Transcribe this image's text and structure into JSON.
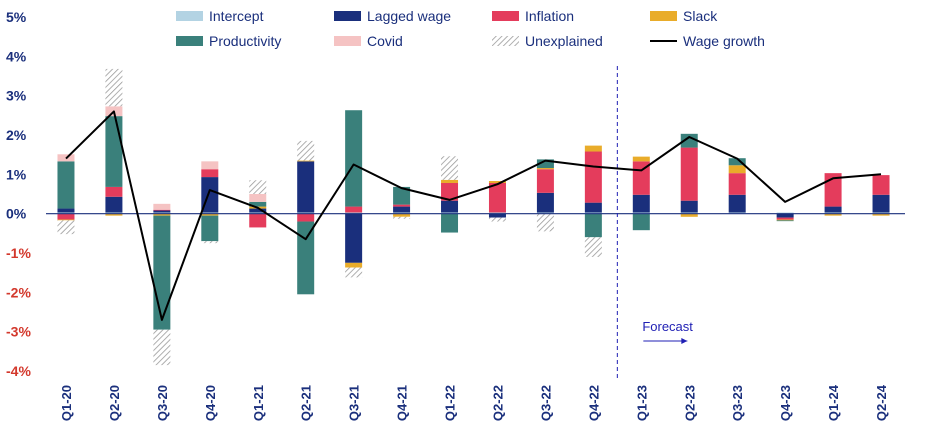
{
  "chart_data": {
    "type": "bar",
    "title": "",
    "xlabel": "",
    "ylabel": "",
    "ylim": [
      -4,
      5
    ],
    "yticks": [
      "5%",
      "4%",
      "3%",
      "2%",
      "1%",
      "0%",
      "-1%",
      "-2%",
      "-3%",
      "-4%"
    ],
    "ytick_values": [
      5,
      4,
      3,
      2,
      1,
      0,
      -1,
      -2,
      -3,
      -4
    ],
    "categories": [
      "Q1-20",
      "Q2-20",
      "Q3-20",
      "Q4-20",
      "Q1-21",
      "Q2-21",
      "Q3-21",
      "Q4-21",
      "Q1-22",
      "Q2-22",
      "Q3-22",
      "Q4-22",
      "Q1-23",
      "Q2-23",
      "Q3-23",
      "Q4-23",
      "Q1-24",
      "Q2-24"
    ],
    "legend_position": "top",
    "colors": {
      "Intercept": "#b3d3e3",
      "Lagged wage": "#1a2f7c",
      "Inflation": "#e43c5c",
      "Slack": "#e9ac2a",
      "Productivity": "#3a807b",
      "Covid": "#f5c3c3",
      "Unexplained": "#a8a8a8",
      "Wage growth": "#000000",
      "negative_tick": "#d3382c",
      "positive_tick": "#1a2f7c",
      "forecast": "#1f1fb4"
    },
    "series": [
      {
        "name": "Intercept",
        "values": [
          0.03,
          0.03,
          0.03,
          0.03,
          0.03,
          0.03,
          0.03,
          0.03,
          0.03,
          0.03,
          0.03,
          0.03,
          0.03,
          0.03,
          0.03,
          0.03,
          0.03,
          0.03
        ]
      },
      {
        "name": "Lagged wage",
        "values": [
          0.1,
          0.4,
          0.05,
          0.9,
          0.1,
          1.3,
          -1.25,
          0.15,
          0.3,
          -0.1,
          0.5,
          0.25,
          0.45,
          0.3,
          0.45,
          -0.1,
          0.15,
          0.45
        ]
      },
      {
        "name": "Inflation",
        "values": [
          -0.15,
          0.25,
          0.02,
          0.2,
          -0.35,
          -0.2,
          0.15,
          0.05,
          0.45,
          0.75,
          0.6,
          1.3,
          0.85,
          1.35,
          0.55,
          -0.05,
          0.85,
          0.5
        ]
      },
      {
        "name": "Slack",
        "values": [
          -0.02,
          -0.05,
          -0.05,
          -0.05,
          0.05,
          0.02,
          -0.12,
          -0.08,
          0.08,
          0.05,
          0.03,
          0.15,
          0.12,
          -0.08,
          0.2,
          -0.02,
          -0.05,
          -0.05
        ]
      },
      {
        "name": "Productivity",
        "values": [
          1.2,
          1.8,
          -2.9,
          -0.65,
          0.12,
          -1.85,
          2.45,
          0.45,
          -0.48,
          0.0,
          0.22,
          -0.6,
          -0.42,
          0.35,
          0.18,
          -0.02,
          0.0,
          0.0
        ]
      },
      {
        "name": "Covid",
        "values": [
          0.18,
          0.25,
          0.15,
          0.2,
          0.2,
          0.0,
          0.0,
          0.0,
          0.0,
          0.0,
          0.0,
          0.0,
          0.0,
          0.0,
          0.0,
          0.0,
          0.0,
          0.0
        ]
      },
      {
        "name": "Unexplained",
        "values": [
          -0.35,
          0.95,
          -0.9,
          -0.05,
          0.35,
          0.5,
          -0.25,
          -0.05,
          0.6,
          -0.1,
          -0.45,
          -0.5,
          0.0,
          0.0,
          0.0,
          0.0,
          0.0,
          0.0
        ]
      },
      {
        "name": "Wage growth",
        "values": [
          1.4,
          2.6,
          -2.7,
          0.6,
          0.15,
          -0.65,
          1.25,
          0.65,
          0.35,
          0.75,
          1.35,
          1.2,
          1.1,
          1.95,
          1.4,
          0.3,
          0.9,
          1.0
        ]
      }
    ],
    "forecast_label": "Forecast",
    "forecast_start_index": 12
  }
}
